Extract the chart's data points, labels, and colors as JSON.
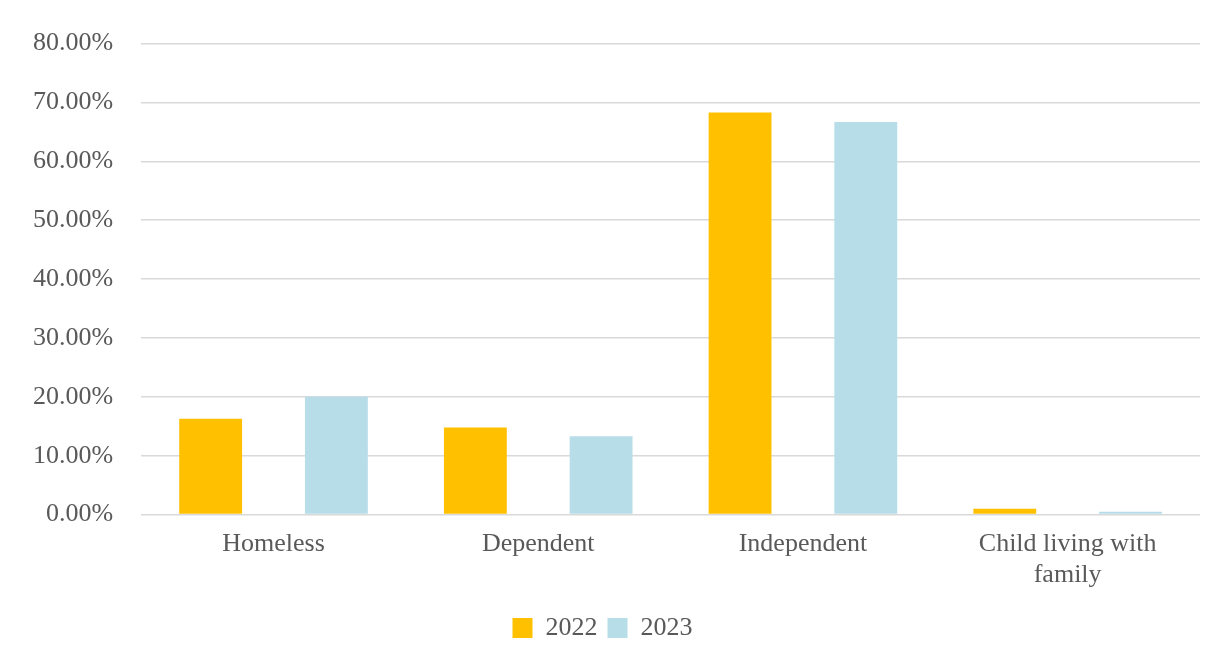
{
  "chart_data": {
    "type": "bar",
    "categories": [
      "Homeless",
      "Dependent",
      "Independent",
      "Child living with family"
    ],
    "series": [
      {
        "name": "2022",
        "color": "#ffc000",
        "values": [
          16.3,
          14.8,
          68.3,
          1.0
        ]
      },
      {
        "name": "2023",
        "color": "#b7dde8",
        "values": [
          20.0,
          13.3,
          66.7,
          0.5
        ]
      }
    ],
    "ylim": [
      0,
      80
    ],
    "yticks": [
      {
        "value": 0,
        "label": "0.00%"
      },
      {
        "value": 10,
        "label": "10.00%"
      },
      {
        "value": 20,
        "label": "20.00%"
      },
      {
        "value": 30,
        "label": "30.00%"
      },
      {
        "value": 40,
        "label": "40.00%"
      },
      {
        "value": 50,
        "label": "50.00%"
      },
      {
        "value": 60,
        "label": "60.00%"
      },
      {
        "value": 70,
        "label": "70.00%"
      },
      {
        "value": 80,
        "label": "80.00%"
      }
    ],
    "grid": "y",
    "legend": "bottom"
  }
}
